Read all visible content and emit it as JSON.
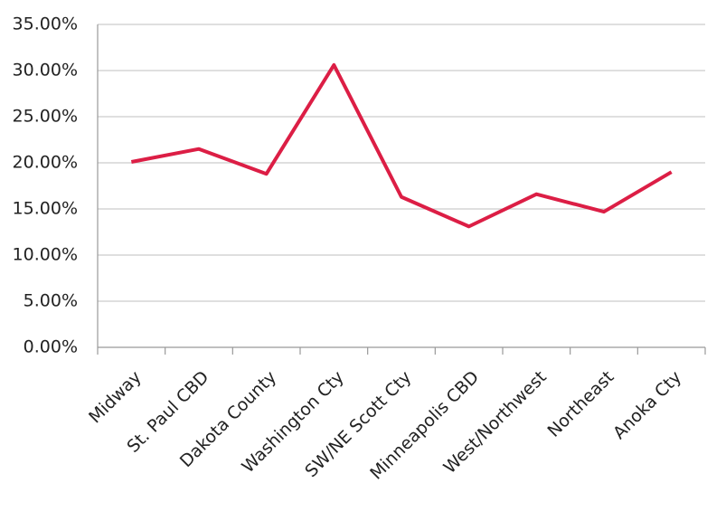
{
  "chart_data": {
    "type": "line",
    "categories": [
      "Midway",
      "St. Paul CBD",
      "Dakota County",
      "Washington Cty",
      "SW/NE Scott Cty",
      "Minneapolis CBD",
      "West/Northwest",
      "Northeast",
      "Anoka Cty"
    ],
    "series": [
      {
        "color": "#dc1e45",
        "values": [
          20.1,
          21.5,
          18.8,
          30.6,
          16.3,
          13.1,
          16.6,
          14.7,
          19.0
        ]
      }
    ],
    "ylim": [
      0,
      35
    ],
    "yticks": [
      {
        "value": 0,
        "label": "0.00%"
      },
      {
        "value": 5,
        "label": "5.00%"
      },
      {
        "value": 10,
        "label": "10.00%"
      },
      {
        "value": 15,
        "label": "15.00%"
      },
      {
        "value": 20,
        "label": "20.00%"
      },
      {
        "value": 25,
        "label": "25.00%"
      },
      {
        "value": 30,
        "label": "30.00%"
      },
      {
        "value": 35,
        "label": "35.00%"
      }
    ],
    "grid": true
  }
}
